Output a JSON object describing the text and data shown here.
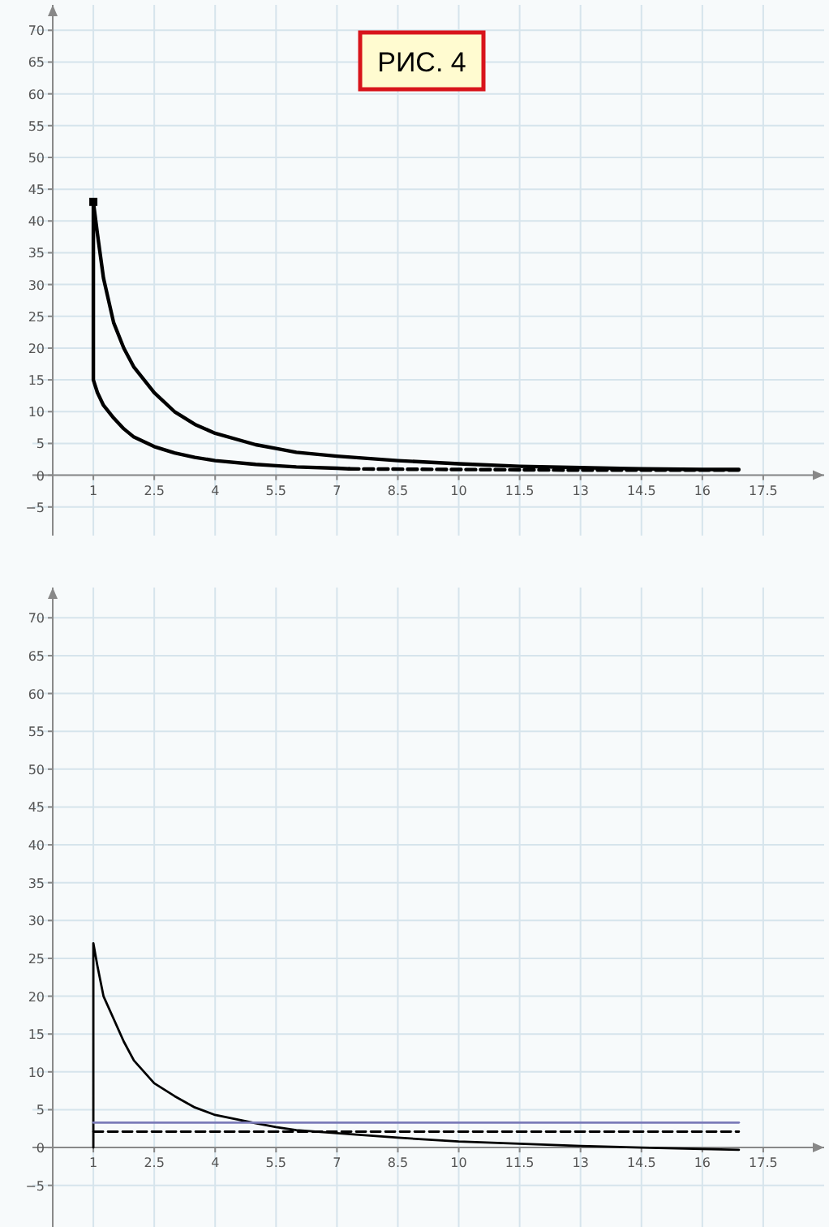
{
  "chart_data": [
    {
      "type": "line",
      "title": "РИС. 4",
      "xlim": [
        -0.5,
        19
      ],
      "ylim": [
        -9.5,
        74
      ],
      "xticks": [
        1,
        2.5,
        4,
        5.5,
        7,
        8.5,
        10,
        11.5,
        13,
        14.5,
        16,
        17.5
      ],
      "yticks": [
        {
          "value": -5,
          "label": "−5"
        },
        0,
        5,
        10,
        15,
        20,
        25,
        30,
        35,
        40,
        45,
        50,
        55,
        60,
        65,
        70
      ],
      "grid": true,
      "series": [
        {
          "type": "line",
          "color": "#000000",
          "line_style": "solid",
          "x": [
            7.3,
            7,
            6,
            5.5,
            5,
            4,
            3.5,
            3,
            2.5,
            2,
            1.75,
            1.5,
            1.25,
            1.1,
            1,
            1,
            1.1,
            1.25,
            1.5,
            1.75,
            2,
            2.5,
            3,
            3.5,
            4,
            5,
            5.5,
            6,
            7,
            8.5,
            10,
            11.5,
            13,
            14.5,
            16,
            16.9
          ],
          "values": [
            1,
            1.1,
            1.3,
            1.5,
            1.7,
            2.3,
            2.8,
            3.5,
            4.5,
            6,
            7.3,
            9,
            11,
            13,
            15,
            43,
            38,
            31,
            24,
            20,
            17,
            13,
            10,
            8,
            6.6,
            4.8,
            4.2,
            3.6,
            3,
            2.3,
            1.8,
            1.4,
            1.2,
            1,
            0.9,
            0.9
          ]
        },
        {
          "type": "line",
          "color": "#000000",
          "line_style": "dashed",
          "x": [
            7.3,
            10,
            13,
            16.9
          ],
          "values": [
            1,
            0.9,
            0.8,
            0.8
          ]
        },
        {
          "type": "scatter",
          "color": "#000000",
          "marker": "square",
          "x": [
            1
          ],
          "values": [
            43
          ]
        }
      ]
    },
    {
      "type": "line",
      "xlim": [
        -0.5,
        19
      ],
      "ylim": [
        -10.5,
        74
      ],
      "xticks": [
        1,
        2.5,
        4,
        5.5,
        7,
        8.5,
        10,
        11.5,
        13,
        14.5,
        16,
        17.5
      ],
      "yticks": [
        {
          "value": -5,
          "label": "−5"
        },
        0,
        5,
        10,
        15,
        20,
        25,
        30,
        35,
        40,
        45,
        50,
        55,
        60,
        65,
        70
      ],
      "grid": true,
      "series": [
        {
          "type": "line",
          "color": "#000000",
          "line_style": "solid",
          "x": [
            1,
            1,
            1.1,
            1.25,
            1.5,
            1.75,
            2,
            2.5,
            3,
            3.5,
            4,
            5,
            5.5,
            6,
            7,
            8.5,
            10,
            11.5,
            13,
            14.5,
            16,
            16.9
          ],
          "values": [
            0,
            27,
            24,
            20,
            17,
            14,
            11.5,
            8.5,
            6.8,
            5.3,
            4.3,
            3.2,
            2.7,
            2.3,
            1.9,
            1.3,
            0.8,
            0.5,
            0.2,
            0,
            -0.2,
            -0.3
          ]
        },
        {
          "type": "line",
          "color": "#7b7bb8",
          "line_style": "solid",
          "x": [
            1,
            16.9
          ],
          "values": [
            3.3,
            3.3
          ]
        },
        {
          "type": "line",
          "color": "#000000",
          "line_style": "dashed",
          "x": [
            1,
            16.9
          ],
          "values": [
            2.1,
            2.1
          ]
        }
      ]
    }
  ]
}
